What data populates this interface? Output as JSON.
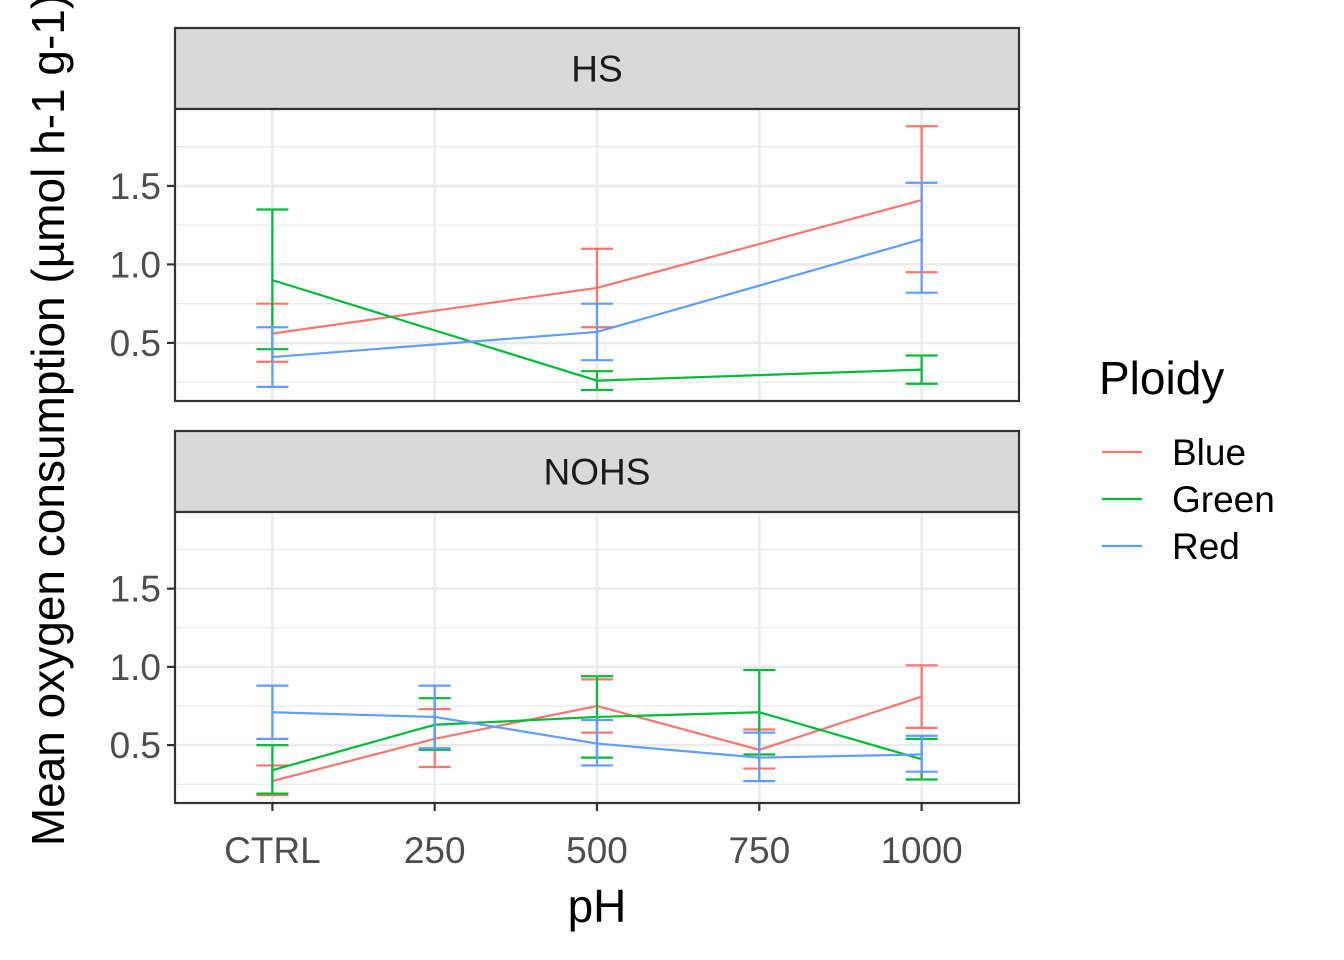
{
  "chart_data": {
    "type": "line",
    "xlabel": "pH",
    "ylabel": "Mean oxygen consumption (µmol h-1 g-1)",
    "categories": [
      "CTRL",
      "250",
      "500",
      "750",
      "1000"
    ],
    "y_ticks": [
      0.5,
      1.0,
      1.5
    ],
    "y_tick_labels": [
      "0.5",
      "1.0",
      "1.5"
    ],
    "ylim": [
      0.13,
      1.99
    ],
    "grid": true,
    "legend": {
      "title": "Ploidy",
      "position": "right"
    },
    "colors": {
      "Blue": "#f8766d",
      "Green": "#00ba38",
      "Red": "#619cff"
    },
    "panels": [
      {
        "label": "HS",
        "series": [
          {
            "name": "Blue",
            "points": [
              {
                "x": "CTRL",
                "y": 0.56,
                "lo": 0.38,
                "hi": 0.75
              },
              {
                "x": "500",
                "y": 0.85,
                "lo": 0.6,
                "hi": 1.1
              },
              {
                "x": "1000",
                "y": 1.41,
                "lo": 0.95,
                "hi": 1.88
              }
            ]
          },
          {
            "name": "Green",
            "points": [
              {
                "x": "CTRL",
                "y": 0.9,
                "lo": 0.46,
                "hi": 1.35
              },
              {
                "x": "500",
                "y": 0.26,
                "lo": 0.2,
                "hi": 0.32
              },
              {
                "x": "1000",
                "y": 0.33,
                "lo": 0.24,
                "hi": 0.42
              }
            ]
          },
          {
            "name": "Red",
            "points": [
              {
                "x": "CTRL",
                "y": 0.41,
                "lo": 0.22,
                "hi": 0.6
              },
              {
                "x": "500",
                "y": 0.57,
                "lo": 0.39,
                "hi": 0.75
              },
              {
                "x": "1000",
                "y": 1.16,
                "lo": 0.82,
                "hi": 1.52
              }
            ]
          }
        ]
      },
      {
        "label": "NOHS",
        "series": [
          {
            "name": "Blue",
            "points": [
              {
                "x": "CTRL",
                "y": 0.27,
                "lo": 0.18,
                "hi": 0.37
              },
              {
                "x": "250",
                "y": 0.54,
                "lo": 0.36,
                "hi": 0.73
              },
              {
                "x": "500",
                "y": 0.75,
                "lo": 0.58,
                "hi": 0.92
              },
              {
                "x": "750",
                "y": 0.47,
                "lo": 0.35,
                "hi": 0.6
              },
              {
                "x": "1000",
                "y": 0.81,
                "lo": 0.61,
                "hi": 1.01
              }
            ]
          },
          {
            "name": "Green",
            "points": [
              {
                "x": "CTRL",
                "y": 0.34,
                "lo": 0.19,
                "hi": 0.5
              },
              {
                "x": "250",
                "y": 0.63,
                "lo": 0.47,
                "hi": 0.8
              },
              {
                "x": "500",
                "y": 0.68,
                "lo": 0.42,
                "hi": 0.94
              },
              {
                "x": "750",
                "y": 0.71,
                "lo": 0.44,
                "hi": 0.98
              },
              {
                "x": "1000",
                "y": 0.41,
                "lo": 0.28,
                "hi": 0.54
              }
            ]
          },
          {
            "name": "Red",
            "points": [
              {
                "x": "CTRL",
                "y": 0.71,
                "lo": 0.54,
                "hi": 0.88
              },
              {
                "x": "250",
                "y": 0.68,
                "lo": 0.48,
                "hi": 0.88
              },
              {
                "x": "500",
                "y": 0.51,
                "lo": 0.37,
                "hi": 0.66
              },
              {
                "x": "750",
                "y": 0.42,
                "lo": 0.27,
                "hi": 0.58
              },
              {
                "x": "1000",
                "y": 0.44,
                "lo": 0.33,
                "hi": 0.56
              }
            ]
          }
        ]
      }
    ]
  }
}
